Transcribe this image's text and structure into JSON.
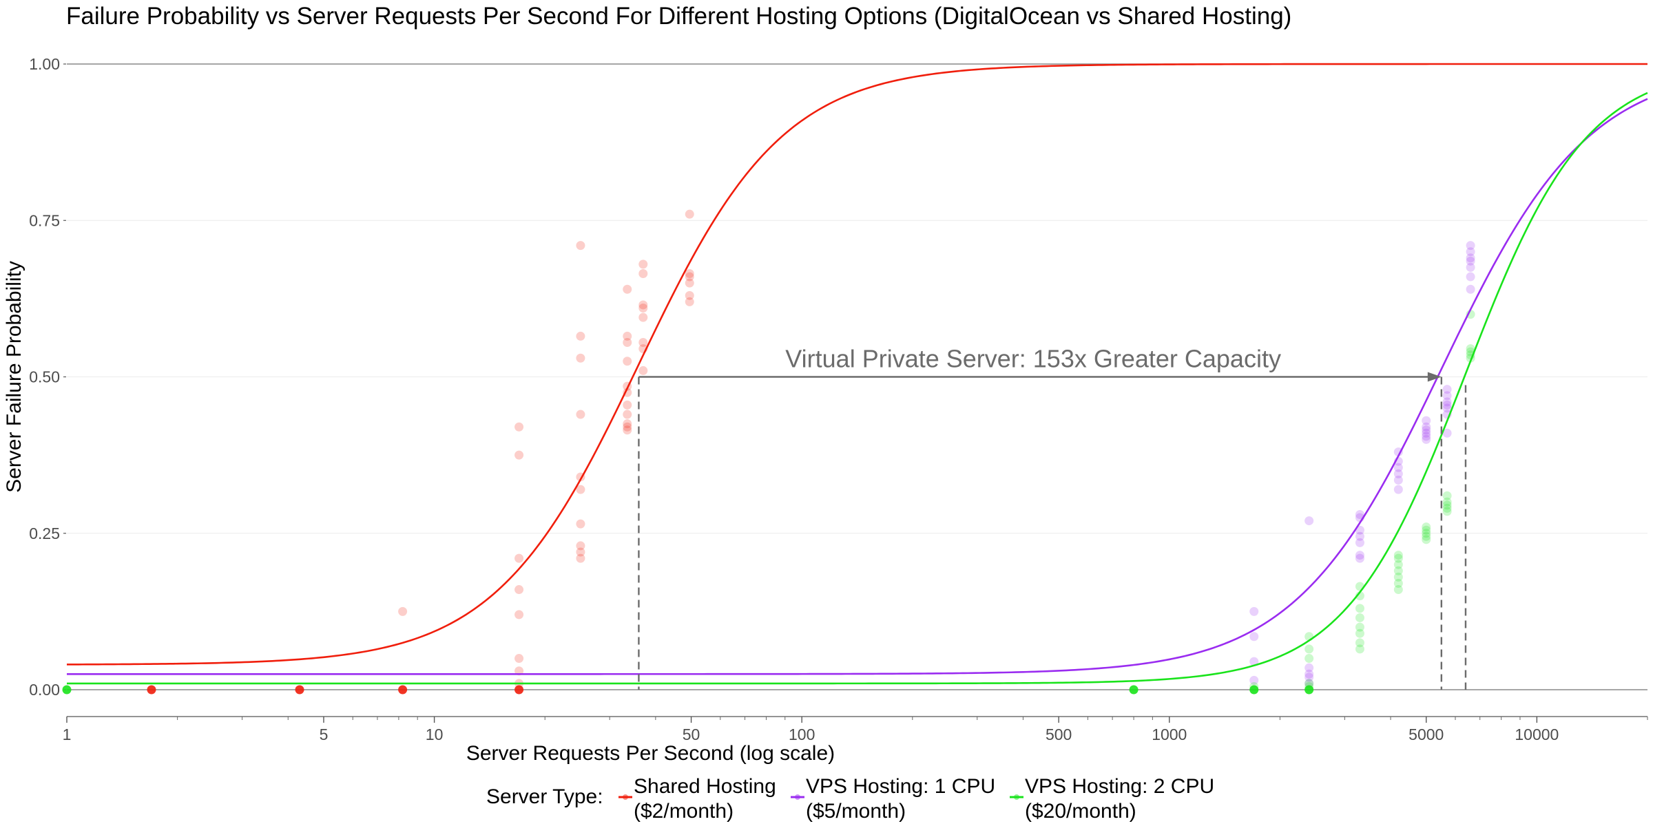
{
  "title": "Failure Probability vs Server Requests Per Second For Different Hosting Options (DigitalOcean vs Shared Hosting)",
  "colors": {
    "shared": "#f01e0c",
    "vps1": "#9a2cf0",
    "vps2": "#19e31b",
    "annotation": "#6b6b6b",
    "baseline": "#888888"
  },
  "chart_data": {
    "type": "scatter",
    "xscale": "log",
    "xlim": [
      1,
      20000
    ],
    "ylim": [
      0,
      1
    ],
    "xlabel": "Server Requests Per Second (log scale)",
    "ylabel": "Server Failure Probability",
    "x_ticks": [
      {
        "value": 1,
        "label": "1"
      },
      {
        "value": 5,
        "label": "5"
      },
      {
        "value": 10,
        "label": "10"
      },
      {
        "value": 50,
        "label": "50"
      },
      {
        "value": 100,
        "label": "100"
      },
      {
        "value": 500,
        "label": "500"
      },
      {
        "value": 1000,
        "label": "1000"
      },
      {
        "value": 5000,
        "label": "5000"
      },
      {
        "value": 10000,
        "label": "10000"
      }
    ],
    "y_ticks": [
      {
        "value": 0,
        "label": "0.00"
      },
      {
        "value": 0.25,
        "label": "0.25"
      },
      {
        "value": 0.5,
        "label": "0.50"
      },
      {
        "value": 0.75,
        "label": "0.75"
      },
      {
        "value": 1,
        "label": "1.00"
      }
    ],
    "annotation": {
      "text": "Virtual Private Server: 153x Greater  Capacity",
      "from": [
        36,
        0.5
      ],
      "to": [
        5500,
        0.5
      ],
      "dashed_x": [
        36,
        5500,
        6400
      ]
    },
    "legend": {
      "title": "Server Type:",
      "position": "bottom"
    },
    "series": [
      {
        "name": "Shared Hosting ($2/month)",
        "color_key": "shared",
        "curve": {
          "floor": 0.04,
          "mid": 36,
          "steepness": 5.1
        },
        "points": [
          [
            1.7,
            0
          ],
          [
            4.3,
            0
          ],
          [
            8.2,
            0
          ],
          [
            17,
            0
          ],
          [
            8.2,
            0.125
          ],
          [
            17,
            0.42
          ],
          [
            17,
            0.375
          ],
          [
            17,
            0.21
          ],
          [
            17,
            0.16
          ],
          [
            17,
            0.12
          ],
          [
            17,
            0.05
          ],
          [
            17,
            0.03
          ],
          [
            17,
            0.01
          ],
          [
            25,
            0.71
          ],
          [
            25,
            0.565
          ],
          [
            25,
            0.53
          ],
          [
            25,
            0.44
          ],
          [
            25,
            0.34
          ],
          [
            25,
            0.32
          ],
          [
            25,
            0.265
          ],
          [
            25,
            0.23
          ],
          [
            25,
            0.22
          ],
          [
            25,
            0.21
          ],
          [
            33.5,
            0.64
          ],
          [
            33.5,
            0.565
          ],
          [
            33.5,
            0.555
          ],
          [
            33.5,
            0.525
          ],
          [
            33.5,
            0.485
          ],
          [
            33.5,
            0.475
          ],
          [
            33.5,
            0.455
          ],
          [
            33.5,
            0.44
          ],
          [
            33.5,
            0.425
          ],
          [
            33.5,
            0.42
          ],
          [
            33.5,
            0.415
          ],
          [
            37,
            0.68
          ],
          [
            37,
            0.665
          ],
          [
            37,
            0.615
          ],
          [
            37,
            0.61
          ],
          [
            37,
            0.595
          ],
          [
            37,
            0.555
          ],
          [
            37,
            0.545
          ],
          [
            37,
            0.51
          ],
          [
            49.5,
            0.76
          ],
          [
            49.5,
            0.665
          ],
          [
            49.5,
            0.66
          ],
          [
            49.5,
            0.65
          ],
          [
            49.5,
            0.63
          ],
          [
            49.5,
            0.62
          ]
        ]
      },
      {
        "name": "VPS Hosting: 1 CPU ($5/month)",
        "color_key": "vps1",
        "curve": {
          "floor": 0.025,
          "mid": 5500,
          "steepness": 5.0
        },
        "points": [
          [
            1700,
            0.125
          ],
          [
            1700,
            0.085
          ],
          [
            1700,
            0.045
          ],
          [
            1700,
            0.015
          ],
          [
            2400,
            0.27
          ],
          [
            2400,
            0.035
          ],
          [
            2400,
            0.025
          ],
          [
            2400,
            0.02
          ],
          [
            2400,
            0.01
          ],
          [
            3300,
            0.28
          ],
          [
            3300,
            0.275
          ],
          [
            3300,
            0.255
          ],
          [
            3300,
            0.245
          ],
          [
            3300,
            0.235
          ],
          [
            3300,
            0.215
          ],
          [
            3300,
            0.21
          ],
          [
            4200,
            0.38
          ],
          [
            4200,
            0.365
          ],
          [
            4200,
            0.355
          ],
          [
            4200,
            0.345
          ],
          [
            4200,
            0.335
          ],
          [
            4200,
            0.32
          ],
          [
            5000,
            0.43
          ],
          [
            5000,
            0.42
          ],
          [
            5000,
            0.415
          ],
          [
            5000,
            0.41
          ],
          [
            5000,
            0.405
          ],
          [
            5000,
            0.4
          ],
          [
            5700,
            0.48
          ],
          [
            5700,
            0.47
          ],
          [
            5700,
            0.46
          ],
          [
            5700,
            0.455
          ],
          [
            5700,
            0.45
          ],
          [
            5700,
            0.44
          ],
          [
            5700,
            0.41
          ],
          [
            6600,
            0.71
          ],
          [
            6600,
            0.7
          ],
          [
            6600,
            0.69
          ],
          [
            6600,
            0.685
          ],
          [
            6600,
            0.675
          ],
          [
            6600,
            0.66
          ],
          [
            6600,
            0.64
          ]
        ]
      },
      {
        "name": "VPS Hosting: 2 CPU ($20/month)",
        "color_key": "vps2",
        "curve": {
          "floor": 0.01,
          "mid": 6400,
          "steepness": 6.1
        },
        "points": [
          [
            1,
            0
          ],
          [
            800,
            0
          ],
          [
            1700,
            0
          ],
          [
            1700,
            0.005
          ],
          [
            2400,
            0.085
          ],
          [
            2400,
            0.065
          ],
          [
            2400,
            0.05
          ],
          [
            2400,
            0.01
          ],
          [
            2400,
            0.005
          ],
          [
            2400,
            0
          ],
          [
            3300,
            0.165
          ],
          [
            3300,
            0.15
          ],
          [
            3300,
            0.13
          ],
          [
            3300,
            0.115
          ],
          [
            3300,
            0.1
          ],
          [
            3300,
            0.09
          ],
          [
            3300,
            0.075
          ],
          [
            3300,
            0.065
          ],
          [
            4200,
            0.215
          ],
          [
            4200,
            0.21
          ],
          [
            4200,
            0.2
          ],
          [
            4200,
            0.19
          ],
          [
            4200,
            0.18
          ],
          [
            4200,
            0.17
          ],
          [
            4200,
            0.16
          ],
          [
            5000,
            0.26
          ],
          [
            5000,
            0.255
          ],
          [
            5000,
            0.25
          ],
          [
            5000,
            0.245
          ],
          [
            5000,
            0.24
          ],
          [
            5700,
            0.31
          ],
          [
            5700,
            0.3
          ],
          [
            5700,
            0.295
          ],
          [
            5700,
            0.29
          ],
          [
            5700,
            0.285
          ],
          [
            6600,
            0.6
          ],
          [
            6600,
            0.545
          ],
          [
            6600,
            0.54
          ],
          [
            6600,
            0.535
          ],
          [
            6600,
            0.53
          ]
        ]
      }
    ]
  }
}
